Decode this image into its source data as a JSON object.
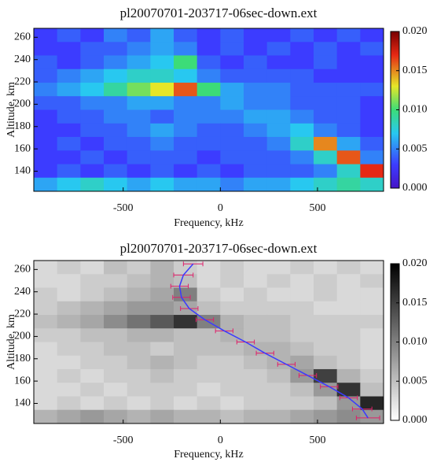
{
  "chart_data": [
    {
      "type": "heatmap",
      "title": "pl20070701-203717-06sec-down.ext",
      "x_label": "Frequency, kHz",
      "y_label": "Altitude, km",
      "colormap": "rainbow",
      "xlim": [
        -960,
        840
      ],
      "ylim": [
        122,
        268
      ],
      "xticks": [
        -500,
        0,
        500
      ],
      "yticks": [
        140,
        160,
        180,
        200,
        220,
        240,
        260
      ],
      "xbins": [
        -960,
        -840,
        -720,
        -600,
        -480,
        -360,
        -240,
        -120,
        0,
        120,
        240,
        360,
        480,
        600,
        720,
        840
      ],
      "ybins": [
        268,
        255.8,
        243.7,
        231.5,
        219.3,
        207.2,
        195,
        182.8,
        170.7,
        158.5,
        146.3,
        134.2,
        122
      ],
      "z": [
        [
          0.003,
          0.004,
          0.003,
          0.005,
          0.004,
          0.006,
          0.004,
          0.003,
          0.004,
          0.003,
          0.003,
          0.004,
          0.003,
          0.004,
          0.003
        ],
        [
          0.003,
          0.003,
          0.004,
          0.004,
          0.005,
          0.006,
          0.005,
          0.003,
          0.004,
          0.003,
          0.004,
          0.003,
          0.004,
          0.003,
          0.004
        ],
        [
          0.004,
          0.003,
          0.004,
          0.005,
          0.006,
          0.007,
          0.01,
          0.004,
          0.003,
          0.004,
          0.003,
          0.003,
          0.004,
          0.003,
          0.003
        ],
        [
          0.004,
          0.005,
          0.006,
          0.007,
          0.008,
          0.008,
          0.007,
          0.005,
          0.004,
          0.004,
          0.004,
          0.004,
          0.003,
          0.003,
          0.003
        ],
        [
          0.005,
          0.006,
          0.007,
          0.009,
          0.011,
          0.013,
          0.016,
          0.01,
          0.006,
          0.005,
          0.005,
          0.004,
          0.004,
          0.004,
          0.004
        ],
        [
          0.004,
          0.004,
          0.005,
          0.005,
          0.006,
          0.006,
          0.005,
          0.005,
          0.006,
          0.005,
          0.005,
          0.004,
          0.004,
          0.004,
          0.003
        ],
        [
          0.003,
          0.004,
          0.004,
          0.005,
          0.005,
          0.004,
          0.005,
          0.005,
          0.005,
          0.006,
          0.006,
          0.005,
          0.004,
          0.004,
          0.003
        ],
        [
          0.003,
          0.003,
          0.004,
          0.004,
          0.005,
          0.006,
          0.005,
          0.004,
          0.004,
          0.005,
          0.006,
          0.007,
          0.005,
          0.004,
          0.003
        ],
        [
          0.003,
          0.004,
          0.003,
          0.004,
          0.004,
          0.005,
          0.004,
          0.004,
          0.004,
          0.004,
          0.005,
          0.008,
          0.015,
          0.006,
          0.004
        ],
        [
          0.003,
          0.003,
          0.004,
          0.003,
          0.004,
          0.004,
          0.004,
          0.003,
          0.004,
          0.004,
          0.004,
          0.005,
          0.008,
          0.016,
          0.005
        ],
        [
          0.003,
          0.004,
          0.003,
          0.004,
          0.003,
          0.004,
          0.003,
          0.004,
          0.003,
          0.004,
          0.004,
          0.004,
          0.005,
          0.008,
          0.017
        ],
        [
          0.006,
          0.007,
          0.008,
          0.007,
          0.006,
          0.007,
          0.006,
          0.006,
          0.005,
          0.006,
          0.006,
          0.007,
          0.008,
          0.009,
          0.008
        ]
      ],
      "clim": [
        0,
        0.02
      ],
      "cticks": [
        {
          "value": 0,
          "label": "0.000"
        },
        {
          "value": 0.005,
          "label": "0.005"
        },
        {
          "value": 0.01,
          "label": "0.010"
        },
        {
          "value": 0.015,
          "label": "0.015"
        },
        {
          "value": 0.02,
          "label": "0.020"
        }
      ]
    },
    {
      "type": "heatmap",
      "title": "pl20070701-203717-06sec-down.ext",
      "x_label": "Frequency, kHz",
      "y_label": "Altitude, km",
      "colormap": "gray",
      "xlim": [
        -960,
        840
      ],
      "ylim": [
        122,
        268
      ],
      "xticks": [
        -500,
        0,
        500
      ],
      "yticks": [
        140,
        160,
        180,
        200,
        220,
        240,
        260
      ],
      "xbins": [
        -960,
        -840,
        -720,
        -600,
        -480,
        -360,
        -240,
        -120,
        0,
        120,
        240,
        360,
        480,
        600,
        720,
        840
      ],
      "ybins": [
        268,
        255.8,
        243.7,
        231.5,
        219.3,
        207.2,
        195,
        182.8,
        170.7,
        158.5,
        146.3,
        134.2,
        122
      ],
      "z": [
        [
          0.003,
          0.004,
          0.003,
          0.005,
          0.004,
          0.006,
          0.004,
          0.003,
          0.004,
          0.003,
          0.003,
          0.004,
          0.003,
          0.004,
          0.003
        ],
        [
          0.003,
          0.003,
          0.004,
          0.004,
          0.005,
          0.006,
          0.005,
          0.003,
          0.004,
          0.003,
          0.004,
          0.003,
          0.004,
          0.003,
          0.004
        ],
        [
          0.004,
          0.003,
          0.004,
          0.005,
          0.006,
          0.007,
          0.01,
          0.004,
          0.003,
          0.004,
          0.003,
          0.003,
          0.004,
          0.003,
          0.003
        ],
        [
          0.004,
          0.005,
          0.006,
          0.007,
          0.008,
          0.008,
          0.007,
          0.005,
          0.004,
          0.004,
          0.004,
          0.004,
          0.003,
          0.003,
          0.003
        ],
        [
          0.005,
          0.006,
          0.007,
          0.009,
          0.011,
          0.013,
          0.016,
          0.01,
          0.006,
          0.005,
          0.005,
          0.004,
          0.004,
          0.004,
          0.004
        ],
        [
          0.004,
          0.004,
          0.005,
          0.005,
          0.006,
          0.006,
          0.005,
          0.005,
          0.006,
          0.005,
          0.005,
          0.004,
          0.004,
          0.004,
          0.003
        ],
        [
          0.003,
          0.004,
          0.004,
          0.005,
          0.005,
          0.004,
          0.005,
          0.005,
          0.005,
          0.006,
          0.006,
          0.005,
          0.004,
          0.004,
          0.003
        ],
        [
          0.003,
          0.003,
          0.004,
          0.004,
          0.005,
          0.006,
          0.005,
          0.004,
          0.004,
          0.005,
          0.006,
          0.007,
          0.005,
          0.004,
          0.003
        ],
        [
          0.003,
          0.004,
          0.003,
          0.004,
          0.004,
          0.005,
          0.004,
          0.004,
          0.004,
          0.004,
          0.005,
          0.008,
          0.015,
          0.006,
          0.004
        ],
        [
          0.003,
          0.003,
          0.004,
          0.003,
          0.004,
          0.004,
          0.004,
          0.003,
          0.004,
          0.004,
          0.004,
          0.005,
          0.008,
          0.016,
          0.005
        ],
        [
          0.003,
          0.004,
          0.003,
          0.004,
          0.003,
          0.004,
          0.003,
          0.004,
          0.003,
          0.004,
          0.004,
          0.004,
          0.005,
          0.008,
          0.017
        ],
        [
          0.006,
          0.007,
          0.008,
          0.007,
          0.006,
          0.007,
          0.006,
          0.006,
          0.005,
          0.006,
          0.006,
          0.007,
          0.008,
          0.009,
          0.008
        ]
      ],
      "clim": [
        0,
        0.02
      ],
      "cticks": [
        {
          "value": 0,
          "label": "0.000"
        },
        {
          "value": 0.005,
          "label": "0.005"
        },
        {
          "value": 0.01,
          "label": "0.010"
        },
        {
          "value": 0.015,
          "label": "0.015"
        },
        {
          "value": 0.02,
          "label": "0.020"
        }
      ],
      "series": [
        {
          "color": "#3a3aff",
          "err_color": "#e0206a",
          "x": [
            -140,
            -190,
            -210,
            -200,
            -160,
            -80,
            20,
            130,
            230,
            340,
            450,
            560,
            660,
            730,
            760
          ],
          "y": [
            265,
            255,
            245,
            235,
            225,
            215,
            205,
            195,
            185,
            175,
            165,
            155,
            145,
            135,
            127
          ],
          "xerr": [
            50,
            50,
            45,
            45,
            45,
            45,
            45,
            45,
            45,
            45,
            45,
            45,
            45,
            50,
            60
          ]
        }
      ]
    }
  ]
}
